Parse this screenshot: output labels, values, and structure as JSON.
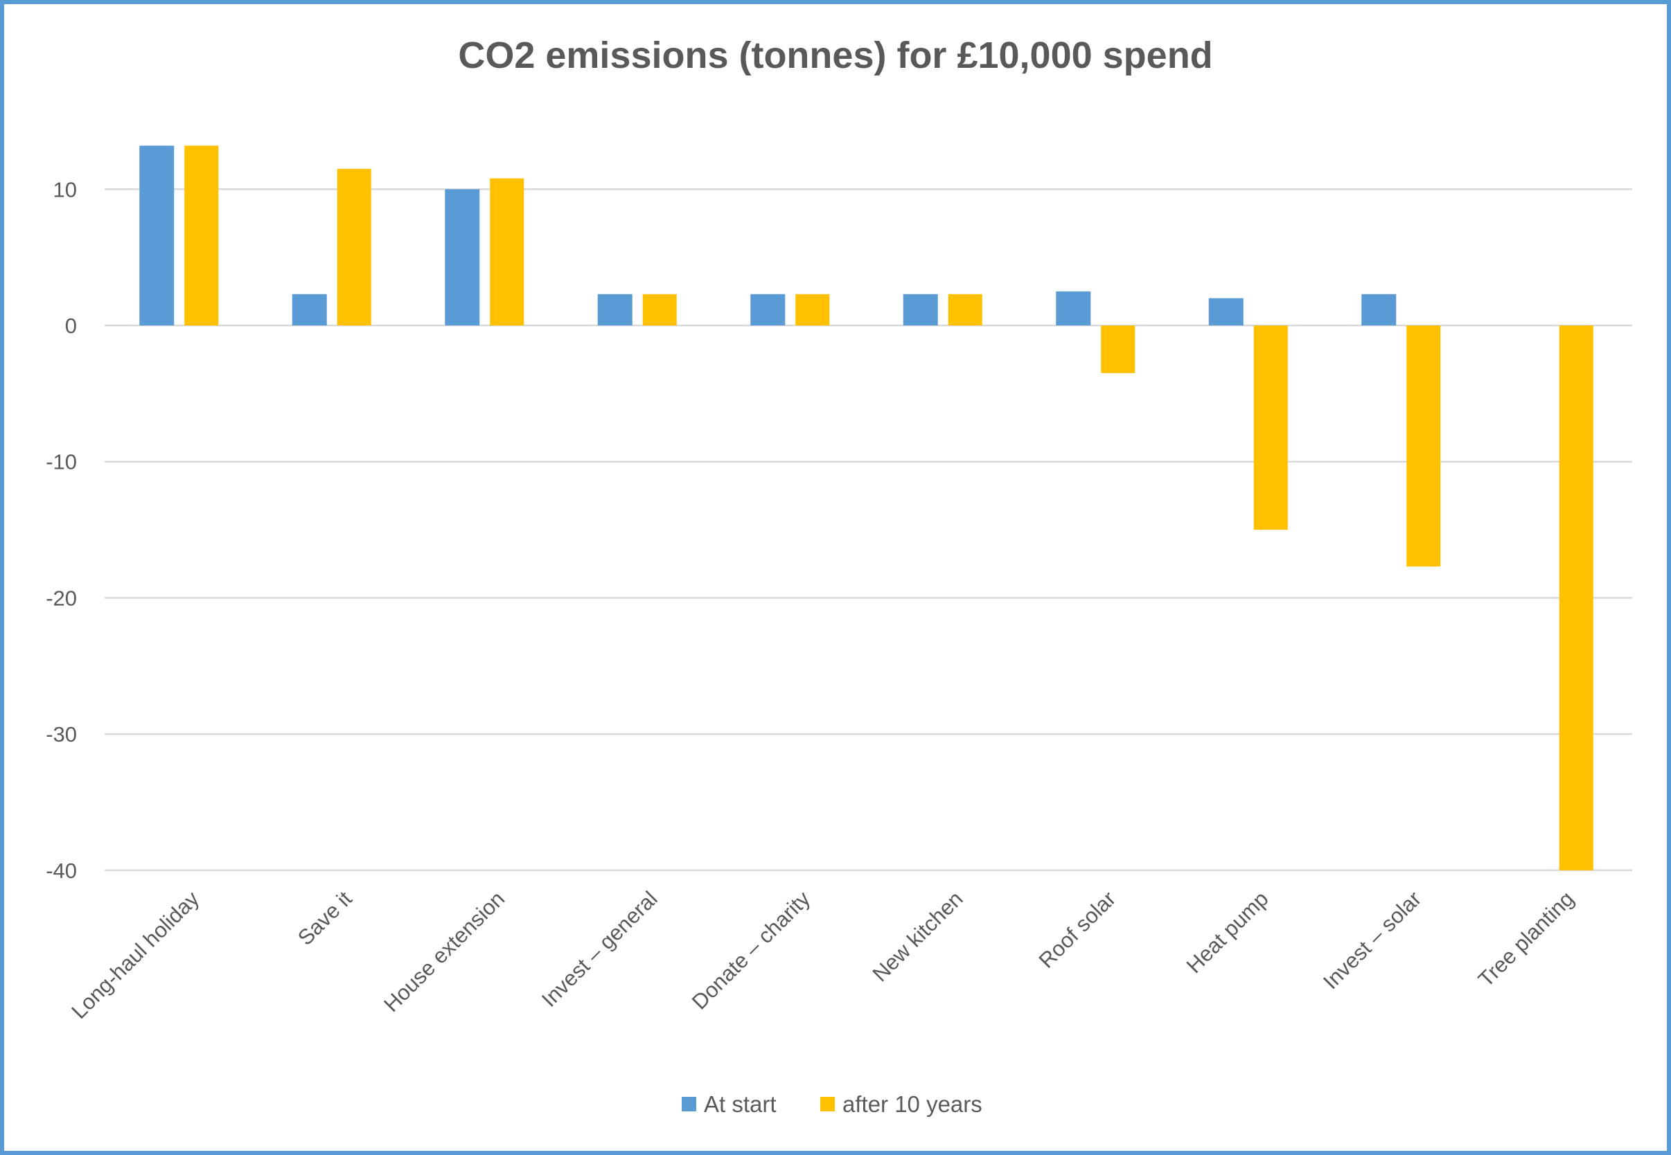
{
  "chart_data": {
    "type": "bar",
    "title": "CO2 emissions (tonnes) for £10,000 spend",
    "xlabel": "",
    "ylabel": "",
    "ylim": [
      -40,
      15
    ],
    "yticks": [
      10,
      0,
      -10,
      -20,
      -30,
      -40
    ],
    "grid": true,
    "legend_position": "bottom",
    "categories": [
      "Long-haul holiday",
      "Save it",
      "House extension",
      "Invest – general",
      "Donate – charity",
      "New kitchen",
      "Roof solar",
      "Heat pump",
      "Invest – solar",
      "Tree planting"
    ],
    "series": [
      {
        "name": "At start",
        "color": "#5B9BD5",
        "values": [
          13.2,
          2.3,
          10.0,
          2.3,
          2.3,
          2.3,
          2.5,
          2.0,
          2.3,
          0
        ]
      },
      {
        "name": "after 10 years",
        "color": "#FFC000",
        "values": [
          13.2,
          11.5,
          10.8,
          2.3,
          2.3,
          2.3,
          -3.5,
          -15.0,
          -17.7,
          -40.0
        ]
      }
    ]
  }
}
